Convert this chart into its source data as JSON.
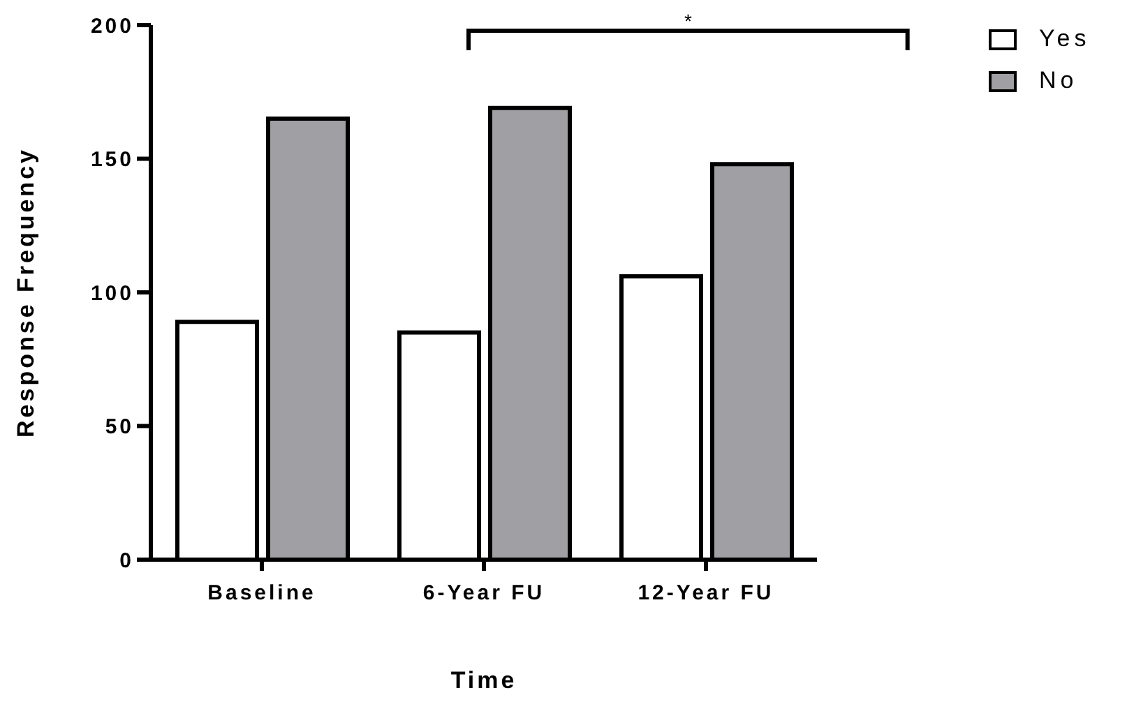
{
  "chart_data": {
    "type": "bar",
    "xlabel": "Time",
    "ylabel": "Response Frequency",
    "categories": [
      "Baseline",
      "6-Year FU",
      "12-Year FU"
    ],
    "series": [
      {
        "name": "Yes",
        "color": "#ffffff",
        "values": [
          89,
          85,
          106
        ]
      },
      {
        "name": "No",
        "color": "#a09fa4",
        "values": [
          165,
          169,
          148
        ]
      }
    ],
    "ylim": [
      0,
      200
    ],
    "yticks": [
      0,
      50,
      100,
      150,
      200
    ],
    "grid": false,
    "legend": "top right",
    "annotations": [
      "*"
    ]
  }
}
